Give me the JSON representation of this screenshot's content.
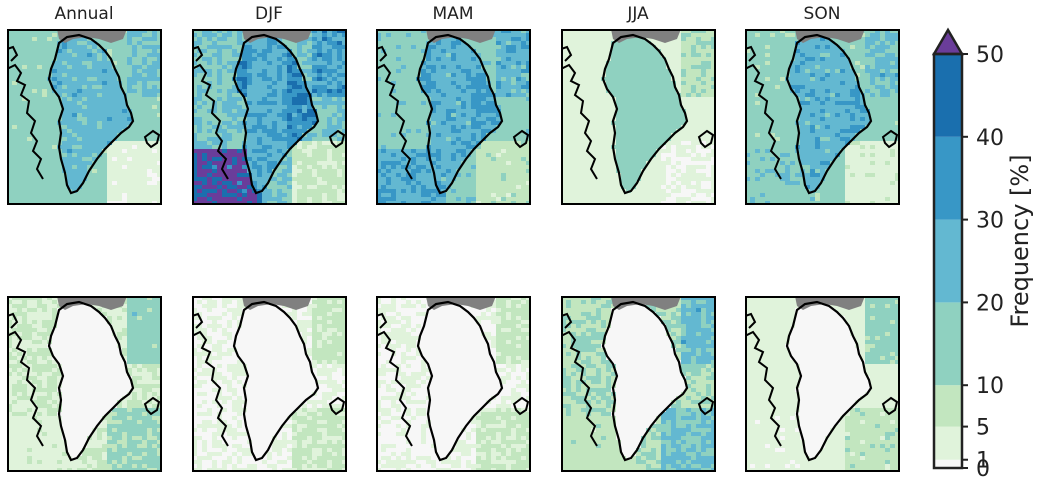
{
  "titles": [
    "Annual",
    "DJF",
    "MAM",
    "JJA",
    "SON"
  ],
  "colorbar": {
    "label": "Frequency [%]",
    "tick_labels": [
      "0",
      "1",
      "5",
      "10",
      "20",
      "30",
      "40",
      "50"
    ],
    "bounds": [
      0,
      1,
      5,
      10,
      20,
      30,
      40,
      50
    ],
    "colors": [
      "#f7f7f7",
      "#e0f3db",
      "#c2e6bf",
      "#8fd1c0",
      "#63b8d1",
      "#3897c6",
      "#1a6fae"
    ],
    "over_color": "#6a3d9a",
    "land_mask_color": "#808080"
  },
  "panels": [
    {
      "season": "Annual",
      "row": "top",
      "interior": 24,
      "ocean": 14,
      "southwest": 16,
      "southeast": 2,
      "edge_high": 28
    },
    {
      "season": "DJF",
      "row": "top",
      "interior": 28,
      "ocean": 20,
      "southwest": 55,
      "southeast": 6,
      "edge_high": 42
    },
    {
      "season": "MAM",
      "row": "top",
      "interior": 26,
      "ocean": 16,
      "southwest": 30,
      "southeast": 8,
      "edge_high": 35
    },
    {
      "season": "JJA",
      "row": "top",
      "interior": 15,
      "ocean": 3,
      "southwest": 3,
      "southeast": 1,
      "edge_high": 12
    },
    {
      "season": "SON",
      "row": "top",
      "interior": 25,
      "ocean": 14,
      "southwest": 18,
      "southeast": 4,
      "edge_high": 30
    },
    {
      "season": "Annual",
      "row": "bottom",
      "interior": 0,
      "ocean": 5,
      "southwest": 4,
      "southeast": 12,
      "edge_high": 20
    },
    {
      "season": "DJF",
      "row": "bottom",
      "interior": 0,
      "ocean": 1,
      "southwest": 1,
      "southeast": 6,
      "edge_high": 8
    },
    {
      "season": "MAM",
      "row": "bottom",
      "interior": 0,
      "ocean": 1,
      "southwest": 1,
      "southeast": 6,
      "edge_high": 8
    },
    {
      "season": "JJA",
      "row": "bottom",
      "interior": 0,
      "ocean": 10,
      "southwest": 8,
      "southeast": 22,
      "edge_high": 30
    },
    {
      "season": "SON",
      "row": "bottom",
      "interior": 0,
      "ocean": 3,
      "southwest": 2,
      "southeast": 8,
      "edge_high": 18
    }
  ]
}
